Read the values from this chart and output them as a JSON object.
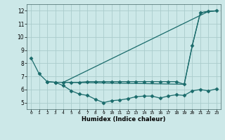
{
  "xlabel": "Humidex (Indice chaleur)",
  "bg_color": "#cce8e8",
  "grid_color": "#aacccc",
  "line_color": "#1a6b6b",
  "xlim": [
    -0.5,
    23.5
  ],
  "ylim": [
    4.5,
    12.5
  ],
  "xticks": [
    0,
    1,
    2,
    3,
    4,
    5,
    6,
    7,
    8,
    9,
    10,
    11,
    12,
    13,
    14,
    15,
    16,
    17,
    18,
    19,
    20,
    21,
    22,
    23
  ],
  "yticks": [
    5,
    6,
    7,
    8,
    9,
    10,
    11,
    12
  ],
  "lines": [
    {
      "x": [
        0,
        1,
        2,
        3,
        4,
        5,
        6,
        7,
        8,
        9,
        10,
        11,
        12,
        13,
        14,
        15,
        16,
        17,
        18,
        19,
        20,
        21,
        22,
        23
      ],
      "y": [
        8.4,
        7.2,
        6.6,
        6.55,
        6.55,
        6.55,
        6.55,
        6.6,
        6.6,
        6.6,
        6.6,
        6.6,
        6.6,
        6.6,
        6.6,
        6.6,
        6.6,
        6.6,
        6.6,
        6.4,
        9.35,
        11.85,
        11.95,
        12.0
      ],
      "marker": "D",
      "markersize": 2.5,
      "linewidth": 0.9,
      "has_marker": true
    },
    {
      "x": [
        2,
        3,
        4,
        5,
        6,
        7,
        8,
        9,
        10,
        11,
        12,
        13,
        14,
        15,
        16,
        17,
        18,
        19,
        20,
        21,
        22,
        23
      ],
      "y": [
        6.6,
        6.55,
        6.3,
        5.9,
        5.65,
        5.55,
        5.25,
        5.0,
        5.15,
        5.2,
        5.3,
        5.45,
        5.5,
        5.5,
        5.35,
        5.5,
        5.6,
        5.55,
        5.9,
        6.0,
        5.9,
        6.05
      ],
      "marker": "D",
      "markersize": 2.5,
      "linewidth": 0.9,
      "has_marker": true
    },
    {
      "x": [
        4,
        22,
        23
      ],
      "y": [
        6.55,
        11.95,
        12.0
      ],
      "marker": null,
      "markersize": 0,
      "linewidth": 0.9,
      "has_marker": false
    },
    {
      "x": [
        4,
        19,
        20,
        21,
        22,
        23
      ],
      "y": [
        6.55,
        6.4,
        9.35,
        11.85,
        11.95,
        12.0
      ],
      "marker": null,
      "markersize": 0,
      "linewidth": 0.9,
      "has_marker": false
    }
  ]
}
